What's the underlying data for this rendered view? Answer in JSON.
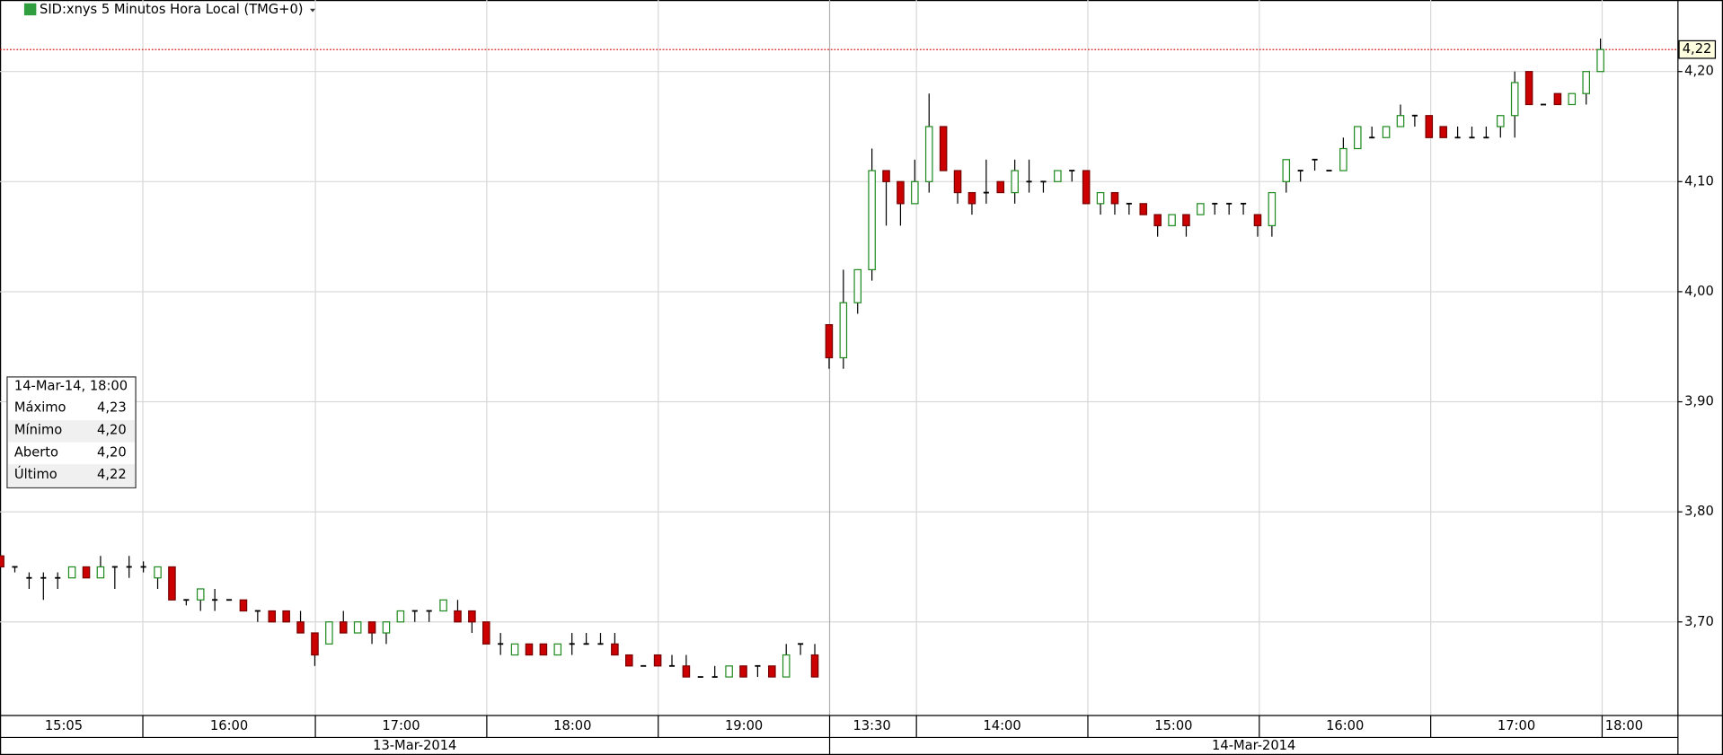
{
  "chart_data": {
    "type": "candlestick",
    "title": "SID:xnys 5 Minutos Hora Local (TMG+0)",
    "open": [
      3.76,
      3.75,
      3.74,
      3.74,
      3.74,
      3.74,
      3.75,
      3.74,
      3.75,
      3.75,
      3.75,
      3.74,
      3.75,
      3.72,
      3.72,
      3.72,
      3.72,
      3.72,
      3.71,
      3.71,
      3.71,
      3.7,
      3.69,
      3.68,
      3.7,
      3.69,
      3.7,
      3.69,
      3.7,
      3.71,
      3.71,
      3.71,
      3.71,
      3.71,
      3.7,
      3.68,
      3.67,
      3.68,
      3.68,
      3.67,
      3.68,
      3.68,
      3.68,
      3.68,
      3.67,
      3.66,
      3.67,
      3.66,
      3.66,
      3.65,
      3.65,
      3.65,
      3.66,
      3.66,
      3.66,
      3.65,
      3.68,
      3.67,
      3.97,
      3.94,
      3.99,
      4.02,
      4.11,
      4.1,
      4.08,
      4.1,
      4.15,
      4.11,
      4.09,
      4.09,
      4.1,
      4.09,
      4.1,
      4.1,
      4.1,
      4.11,
      4.11,
      4.08,
      4.09,
      4.08,
      4.08,
      4.07,
      4.06,
      4.07,
      4.07,
      4.08,
      4.08,
      4.08,
      4.07,
      4.06,
      4.1,
      4.11,
      4.12,
      4.11,
      4.11,
      4.13,
      4.14,
      4.14,
      4.15,
      4.16,
      4.16,
      4.15,
      4.14,
      4.14,
      4.14,
      4.15,
      4.16,
      4.2,
      4.17,
      4.18,
      4.17,
      4.18,
      4.2
    ],
    "high": [
      3.76,
      3.75,
      3.745,
      3.745,
      3.745,
      3.75,
      3.75,
      3.76,
      3.75,
      3.76,
      3.755,
      3.75,
      3.75,
      3.72,
      3.73,
      3.73,
      3.72,
      3.72,
      3.71,
      3.71,
      3.71,
      3.71,
      3.69,
      3.7,
      3.71,
      3.7,
      3.7,
      3.7,
      3.71,
      3.71,
      3.71,
      3.72,
      3.72,
      3.71,
      3.7,
      3.69,
      3.68,
      3.68,
      3.68,
      3.68,
      3.69,
      3.69,
      3.69,
      3.69,
      3.67,
      3.66,
      3.67,
      3.67,
      3.67,
      3.65,
      3.66,
      3.66,
      3.66,
      3.66,
      3.66,
      3.68,
      3.68,
      3.68,
      3.97,
      4.02,
      4.02,
      4.13,
      4.11,
      4.1,
      4.12,
      4.18,
      4.15,
      4.11,
      4.09,
      4.12,
      4.1,
      4.12,
      4.12,
      4.1,
      4.11,
      4.11,
      4.11,
      4.09,
      4.09,
      4.08,
      4.08,
      4.07,
      4.07,
      4.07,
      4.08,
      4.08,
      4.08,
      4.08,
      4.07,
      4.09,
      4.12,
      4.11,
      4.12,
      4.11,
      4.14,
      4.15,
      4.15,
      4.15,
      4.17,
      4.16,
      4.16,
      4.15,
      4.15,
      4.15,
      4.15,
      4.16,
      4.2,
      4.2,
      4.17,
      4.18,
      4.18,
      4.2,
      4.23
    ],
    "low": [
      3.75,
      3.745,
      3.73,
      3.72,
      3.73,
      3.74,
      3.74,
      3.74,
      3.73,
      3.74,
      3.745,
      3.73,
      3.72,
      3.715,
      3.71,
      3.71,
      3.72,
      3.71,
      3.7,
      3.7,
      3.7,
      3.69,
      3.66,
      3.68,
      3.69,
      3.69,
      3.68,
      3.68,
      3.7,
      3.7,
      3.7,
      3.71,
      3.7,
      3.69,
      3.68,
      3.67,
      3.67,
      3.67,
      3.67,
      3.67,
      3.67,
      3.68,
      3.68,
      3.67,
      3.66,
      3.66,
      3.66,
      3.66,
      3.65,
      3.65,
      3.65,
      3.65,
      3.65,
      3.65,
      3.65,
      3.65,
      3.67,
      3.65,
      3.93,
      3.93,
      3.98,
      4.01,
      4.06,
      4.06,
      4.08,
      4.09,
      4.11,
      4.08,
      4.07,
      4.08,
      4.09,
      4.08,
      4.09,
      4.09,
      4.1,
      4.1,
      4.08,
      4.07,
      4.07,
      4.07,
      4.07,
      4.05,
      4.06,
      4.05,
      4.07,
      4.07,
      4.07,
      4.07,
      4.05,
      4.05,
      4.09,
      4.1,
      4.11,
      4.11,
      4.11,
      4.13,
      4.14,
      4.14,
      4.15,
      4.15,
      4.14,
      4.14,
      4.14,
      4.14,
      4.14,
      4.14,
      4.14,
      4.17,
      4.17,
      4.17,
      4.17,
      4.17,
      4.2
    ],
    "close": [
      3.75,
      3.75,
      3.74,
      3.74,
      3.74,
      3.75,
      3.74,
      3.75,
      3.75,
      3.75,
      3.75,
      3.75,
      3.72,
      3.72,
      3.73,
      3.72,
      3.72,
      3.71,
      3.71,
      3.7,
      3.7,
      3.69,
      3.67,
      3.7,
      3.69,
      3.7,
      3.69,
      3.7,
      3.71,
      3.71,
      3.71,
      3.72,
      3.7,
      3.7,
      3.68,
      3.68,
      3.68,
      3.67,
      3.67,
      3.68,
      3.68,
      3.68,
      3.68,
      3.67,
      3.66,
      3.66,
      3.66,
      3.66,
      3.65,
      3.65,
      3.65,
      3.66,
      3.65,
      3.66,
      3.65,
      3.67,
      3.68,
      3.65,
      3.94,
      3.99,
      4.02,
      4.11,
      4.1,
      4.08,
      4.1,
      4.15,
      4.11,
      4.09,
      4.08,
      4.09,
      4.09,
      4.11,
      4.1,
      4.1,
      4.11,
      4.11,
      4.08,
      4.09,
      4.08,
      4.08,
      4.07,
      4.06,
      4.07,
      4.06,
      4.08,
      4.08,
      4.08,
      4.08,
      4.06,
      4.09,
      4.12,
      4.11,
      4.12,
      4.11,
      4.13,
      4.15,
      4.14,
      4.15,
      4.16,
      4.16,
      4.14,
      4.14,
      4.14,
      4.14,
      4.14,
      4.16,
      4.19,
      4.17,
      4.17,
      4.17,
      4.18,
      4.2,
      4.22
    ],
    "up_color": "#1f8a1f",
    "down_color": "#cc0000",
    "ylim": [
      3.615,
      4.265
    ],
    "yticks": [
      {
        "value": 3.7,
        "label": "3,70"
      },
      {
        "value": 3.8,
        "label": "3,80"
      },
      {
        "value": 3.9,
        "label": "3,90"
      },
      {
        "value": 4.0,
        "label": "4,00"
      },
      {
        "value": 4.1,
        "label": "4,10"
      },
      {
        "value": 4.2,
        "label": "4,20"
      }
    ],
    "last_price": {
      "value": 4.22,
      "label": "4,22"
    },
    "time_labels": [
      "15:05",
      "16:00",
      "17:00",
      "18:00",
      "19:00",
      "13:30",
      "14:00",
      "15:00",
      "16:00",
      "17:00",
      "18:00"
    ],
    "date_labels": [
      "13-Mar-2014",
      "14-Mar-2014"
    ],
    "grid": true
  },
  "info_panel": {
    "header": "14-Mar-14, 18:00",
    "rows": [
      [
        "Máximo",
        "4,23"
      ],
      [
        "Mínimo",
        "4,20"
      ],
      [
        "Aberto",
        "4,20"
      ],
      [
        "Último",
        "4,22"
      ]
    ]
  }
}
